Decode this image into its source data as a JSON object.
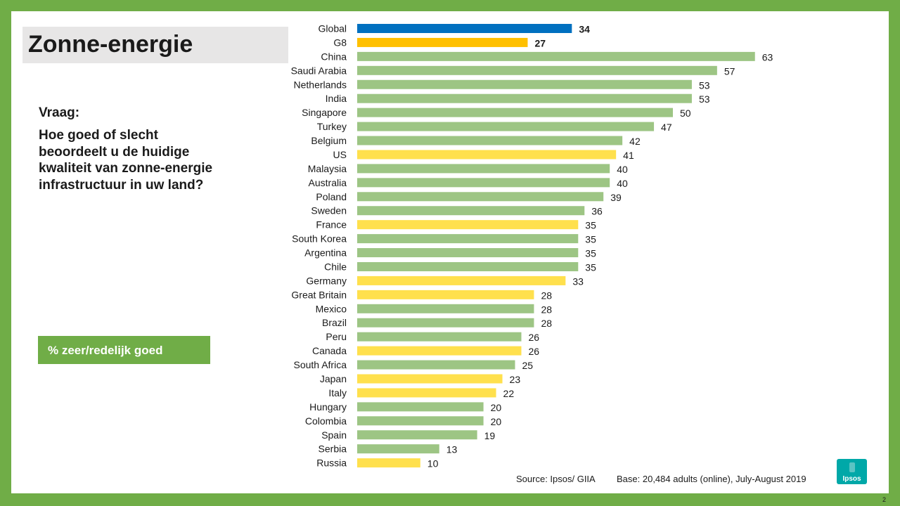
{
  "slide": {
    "title": "Zonne-energie",
    "question_label": "Vraag:",
    "question_text": "Hoe goed of slecht beoordeelt u de huidige kwaliteit van zonne-energie infrastructuur in uw land?",
    "measure_label": "% zeer/redelijk goed",
    "source": "Source:  Ipsos/ GIIA",
    "base": "Base: 20,484 adults (online),  July-August 2019",
    "logo_text": "Ipsos",
    "page_number": "2"
  },
  "colors": {
    "frame": "#70AD47",
    "global": "#0070C0",
    "g8_total": "#FFC000",
    "g8_country": "#FFE04D",
    "other_country": "#9DC584"
  },
  "chart_data": {
    "type": "bar",
    "orientation": "horizontal",
    "categories": [
      "Global",
      "G8",
      "China",
      "Saudi Arabia",
      "Netherlands",
      "India",
      "Singapore",
      "Turkey",
      "Belgium",
      "US",
      "Malaysia",
      "Australia",
      "Poland",
      "Sweden",
      "France",
      "South Korea",
      "Argentina",
      "Chile",
      "Germany",
      "Great Britain",
      "Mexico",
      "Brazil",
      "Peru",
      "Canada",
      "South Africa",
      "Japan",
      "Italy",
      "Hungary",
      "Colombia",
      "Spain",
      "Serbia",
      "Russia"
    ],
    "values": [
      34,
      27,
      63,
      57,
      53,
      53,
      50,
      47,
      42,
      41,
      40,
      40,
      39,
      36,
      35,
      35,
      35,
      35,
      33,
      28,
      28,
      28,
      26,
      26,
      25,
      23,
      22,
      20,
      20,
      19,
      13,
      10
    ],
    "groups": [
      "global",
      "g8_total",
      "other",
      "other",
      "other",
      "other",
      "other",
      "other",
      "other",
      "g8",
      "other",
      "other",
      "other",
      "other",
      "g8",
      "other",
      "other",
      "other",
      "g8",
      "g8",
      "other",
      "other",
      "other",
      "g8",
      "other",
      "g8",
      "g8",
      "other",
      "other",
      "other",
      "other",
      "g8"
    ],
    "value_labels": [
      "34",
      "27",
      "63",
      "57",
      "53",
      "53",
      "50",
      "47",
      "42",
      "41",
      "40",
      "40",
      "39",
      "36",
      "35",
      "35",
      "35",
      "35",
      "33",
      "28",
      "28",
      "28",
      "26",
      "26",
      "25",
      "23",
      "22",
      "20",
      "20",
      "19",
      "13",
      "10"
    ],
    "xlim": [
      0,
      63
    ],
    "title": "",
    "xlabel": "",
    "ylabel": "",
    "grid": false,
    "legend": "none"
  }
}
